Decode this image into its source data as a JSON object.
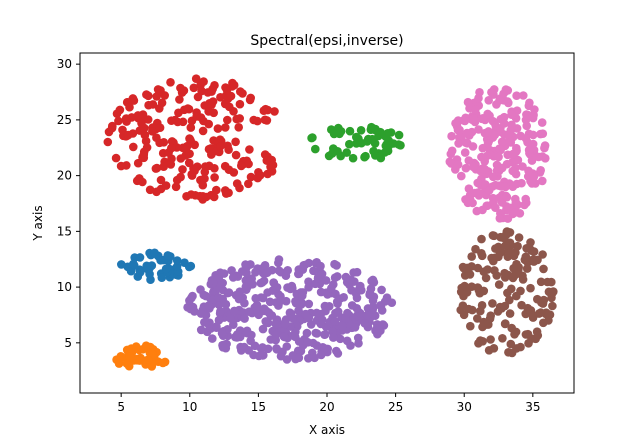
{
  "chart_data": {
    "type": "scatter",
    "title": "Spectral(epsi,inverse)",
    "xlabel": "X axis",
    "ylabel": "Y axis",
    "xlim": [
      2,
      38
    ],
    "ylim": [
      0.5,
      31
    ],
    "xticks": [
      5,
      10,
      15,
      20,
      25,
      30,
      35
    ],
    "yticks": [
      5,
      10,
      15,
      20,
      25,
      30
    ],
    "xtick_labels": [
      "5",
      "10",
      "15",
      "20",
      "25",
      "30",
      "35"
    ],
    "ytick_labels": [
      "5",
      "10",
      "15",
      "20",
      "25",
      "30"
    ],
    "grid": false,
    "legend": "none",
    "colors": [
      "#1f77b4",
      "#ff7f0e",
      "#2ca02c",
      "#d62728",
      "#9467bd",
      "#8c564b",
      "#e377c2"
    ],
    "series": [
      {
        "color": "#1f77b4",
        "count": 45,
        "center": [
          7.5,
          11.9
        ],
        "spread": [
          2.6,
          1.3
        ]
      },
      {
        "color": "#ff7f0e",
        "count": 45,
        "center": [
          6.5,
          3.7
        ],
        "spread": [
          2.0,
          1.1
        ]
      },
      {
        "color": "#2ca02c",
        "count": 55,
        "center": [
          22.3,
          22.9
        ],
        "spread": [
          3.6,
          1.5
        ]
      },
      {
        "color": "#d62728",
        "count": 230,
        "center": [
          10.5,
          23.3
        ],
        "spread": [
          6.5,
          5.5
        ]
      },
      {
        "color": "#9467bd",
        "count": 400,
        "center": [
          17.3,
          8.0
        ],
        "spread": [
          7.5,
          4.5
        ]
      },
      {
        "color": "#8c564b",
        "count": 160,
        "center": [
          33.0,
          9.5
        ],
        "spread": [
          3.6,
          5.5
        ]
      },
      {
        "color": "#e377c2",
        "count": 240,
        "center": [
          32.5,
          22.0
        ],
        "spread": [
          3.6,
          6.0
        ]
      }
    ]
  }
}
